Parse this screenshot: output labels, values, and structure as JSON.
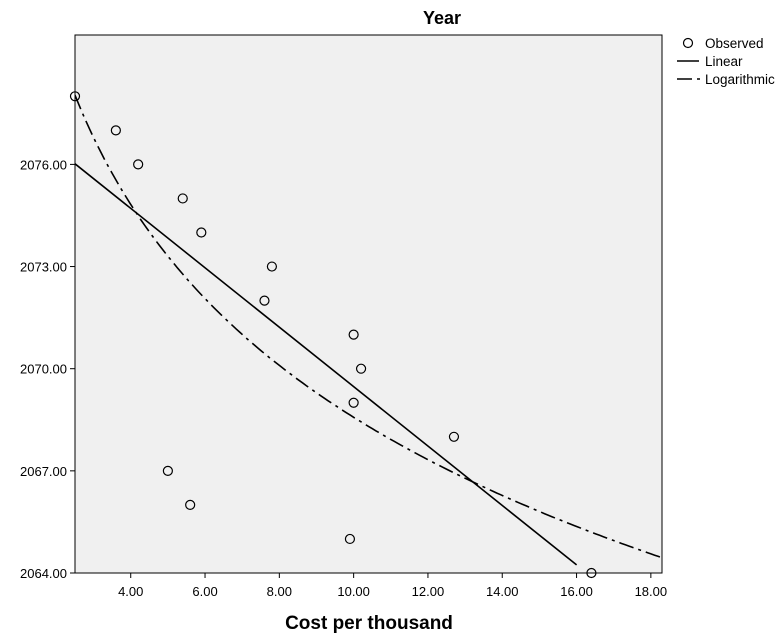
{
  "chart_data": {
    "type": "scatter",
    "title": "Year",
    "xlabel": "Cost per thousand",
    "ylabel": "",
    "xlim": [
      2.5,
      18.3
    ],
    "ylim": [
      2064,
      2079.8
    ],
    "x_ticks": [
      4,
      6,
      8,
      10,
      12,
      14,
      16,
      18
    ],
    "x_tick_labels": [
      "4.00",
      "6.00",
      "8.00",
      "10.00",
      "12.00",
      "14.00",
      "16.00",
      "18.00"
    ],
    "y_ticks": [
      2064,
      2067,
      2070,
      2073,
      2076
    ],
    "y_tick_labels": [
      "2064.00",
      "2067.00",
      "2070.00",
      "2073.00",
      "2076.00"
    ],
    "grid": false,
    "legend_position": "top-right outside",
    "background_color": "#f0f0f0",
    "series": [
      {
        "name": "Observed",
        "kind": "markers",
        "points": [
          {
            "x": 2.5,
            "y": 2078
          },
          {
            "x": 3.6,
            "y": 2077
          },
          {
            "x": 4.2,
            "y": 2076
          },
          {
            "x": 5.4,
            "y": 2075
          },
          {
            "x": 5.9,
            "y": 2074
          },
          {
            "x": 7.8,
            "y": 2073
          },
          {
            "x": 7.6,
            "y": 2072
          },
          {
            "x": 10.0,
            "y": 2071
          },
          {
            "x": 10.2,
            "y": 2070
          },
          {
            "x": 10.0,
            "y": 2069
          },
          {
            "x": 12.7,
            "y": 2068
          },
          {
            "x": 5.0,
            "y": 2067
          },
          {
            "x": 5.6,
            "y": 2066
          },
          {
            "x": 9.9,
            "y": 2065
          },
          {
            "x": 16.4,
            "y": 2064
          }
        ]
      },
      {
        "name": "Linear",
        "kind": "line",
        "dash": "solid",
        "intercept": 2078.2,
        "slope": -0.8727,
        "x_range": [
          2.5,
          16.0
        ]
      },
      {
        "name": "Logarithmic",
        "kind": "curve",
        "dash": "long-short",
        "intercept": 2084.285,
        "log_coefficient": -6.8236,
        "x_range": [
          2.5,
          18.3
        ]
      }
    ]
  }
}
